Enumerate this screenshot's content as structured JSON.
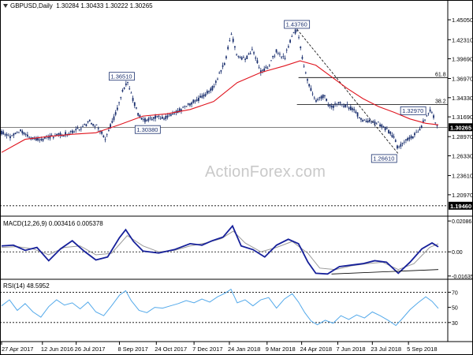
{
  "header": {
    "symbol": "GBPUSD,Daily",
    "ohlc": "1.30284 1.30433 1.30222 1.30265",
    "macd_label": "MACD(12,26,9) 0.003416 0.005378",
    "rsi_label": "RSI(14) 48.5952"
  },
  "watermark": "ActionForex.com",
  "colors": {
    "candles": "#1a2f6e",
    "ma": "#e0141e",
    "macd": "#16209a",
    "signal": "#999999",
    "rsi": "#53a9ea",
    "trend": "#000000"
  },
  "chart_data": [
    {
      "type": "candlestick",
      "title": "GBPUSD,Daily",
      "ylim": [
        1.1846,
        1.4625
      ],
      "y_ticks": [
        1.4505,
        1.4231,
        1.3969,
        1.3697,
        1.3433,
        1.3169,
        1.2897,
        1.2633,
        1.2361,
        1.2097
      ],
      "y_tick_labels": [
        "1.45050",
        "1.42310",
        "1.39690",
        "1.36970",
        "1.34330",
        "1.31690",
        "1.28970",
        "1.26330",
        "1.23610",
        "1.20970"
      ],
      "x_tick_labels": [
        "27 Apr 2017",
        "12 Jun 2016",
        "26 Jul 2017",
        "8 Sep 2017",
        "24 Oct 2017",
        "7 Dec 2017",
        "24 Jan 2018",
        "9 Mar 2018",
        "24 Apr 2018",
        "7 Jun 2018",
        "23 Jul 2018",
        "5 Sep 2018"
      ],
      "close_path": [
        [
          0,
          1.295
        ],
        [
          12,
          1.289
        ],
        [
          25,
          1.298
        ],
        [
          38,
          1.288
        ],
        [
          50,
          1.285
        ],
        [
          62,
          1.29
        ],
        [
          75,
          1.292
        ],
        [
          88,
          1.295
        ],
        [
          100,
          1.301
        ],
        [
          112,
          1.31
        ],
        [
          120,
          1.305
        ],
        [
          132,
          1.288
        ],
        [
          145,
          1.32
        ],
        [
          155,
          1.355
        ],
        [
          160,
          1.364
        ],
        [
          168,
          1.338
        ],
        [
          175,
          1.318
        ],
        [
          185,
          1.311
        ],
        [
          198,
          1.317
        ],
        [
          210,
          1.315
        ],
        [
          225,
          1.325
        ],
        [
          240,
          1.335
        ],
        [
          255,
          1.344
        ],
        [
          270,
          1.358
        ],
        [
          285,
          1.393
        ],
        [
          292,
          1.433
        ],
        [
          300,
          1.402
        ],
        [
          310,
          1.395
        ],
        [
          320,
          1.41
        ],
        [
          330,
          1.378
        ],
        [
          340,
          1.387
        ],
        [
          350,
          1.408
        ],
        [
          360,
          1.396
        ],
        [
          368,
          1.424
        ],
        [
          376,
          1.438
        ],
        [
          382,
          1.402
        ],
        [
          390,
          1.365
        ],
        [
          400,
          1.337
        ],
        [
          410,
          1.346
        ],
        [
          420,
          1.329
        ],
        [
          430,
          1.336
        ],
        [
          440,
          1.332
        ],
        [
          450,
          1.324
        ],
        [
          460,
          1.312
        ],
        [
          470,
          1.31
        ],
        [
          480,
          1.308
        ],
        [
          490,
          1.3
        ],
        [
          500,
          1.287
        ],
        [
          505,
          1.272
        ],
        [
          512,
          1.283
        ],
        [
          520,
          1.288
        ],
        [
          530,
          1.294
        ],
        [
          538,
          1.312
        ],
        [
          545,
          1.326
        ],
        [
          550,
          1.316
        ],
        [
          556,
          1.3026
        ]
      ],
      "ma_path": [
        [
          0,
          1.268
        ],
        [
          30,
          1.286
        ],
        [
          60,
          1.29
        ],
        [
          90,
          1.293
        ],
        [
          120,
          1.295
        ],
        [
          150,
          1.306
        ],
        [
          180,
          1.318
        ],
        [
          210,
          1.321
        ],
        [
          240,
          1.327
        ],
        [
          270,
          1.338
        ],
        [
          300,
          1.364
        ],
        [
          330,
          1.378
        ],
        [
          360,
          1.387
        ],
        [
          380,
          1.394
        ],
        [
          400,
          1.388
        ],
        [
          420,
          1.372
        ],
        [
          440,
          1.356
        ],
        [
          460,
          1.342
        ],
        [
          480,
          1.331
        ],
        [
          500,
          1.323
        ],
        [
          520,
          1.314
        ],
        [
          540,
          1.308
        ],
        [
          556,
          1.306
        ]
      ],
      "price_labels": [
        {
          "text": "1.43760",
          "x": 376,
          "y": 1.4376
        },
        {
          "text": "1.36510",
          "x": 153,
          "y": 1.3651
        },
        {
          "text": "1.30380",
          "x": 186,
          "y": 1.3038
        },
        {
          "text": "1.32970",
          "x": 524,
          "y": 1.3297
        },
        {
          "text": "1.26610",
          "x": 487,
          "y": 1.2661
        }
      ],
      "fib_levels": [
        {
          "label": "61.8",
          "y": 1.371
        },
        {
          "label": "38.2",
          "y": 1.334
        }
      ],
      "horizontal_lines": [
        1.1946,
        1.30265
      ],
      "right_price_boxes": [
        "1.30265",
        "1.19460"
      ]
    },
    {
      "type": "line",
      "title": "MACD(12,26,9) 0.003416 0.005378",
      "ylim": [
        -0.0175,
        0.022
      ],
      "y_ticks": [
        0.020861,
        0.0,
        -0.016357
      ],
      "y_tick_labels": [
        "0.020861",
        "0.00",
        "-0.016357"
      ],
      "series": [
        {
          "name": "MACD",
          "values": [
            [
              0,
              0.004
            ],
            [
              15,
              0.0045
            ],
            [
              30,
              0.001
            ],
            [
              45,
              0.003
            ],
            [
              60,
              -0.006
            ],
            [
              75,
              0.002
            ],
            [
              90,
              0.0075
            ],
            [
              105,
              0.0005
            ],
            [
              120,
              -0.0055
            ],
            [
              135,
              -0.0035
            ],
            [
              150,
              0.0095
            ],
            [
              158,
              0.015
            ],
            [
              168,
              0.007
            ],
            [
              180,
              0.0005
            ],
            [
              200,
              -0.0008
            ],
            [
              220,
              0.0015
            ],
            [
              240,
              0.0055
            ],
            [
              255,
              0.0045
            ],
            [
              268,
              0.0075
            ],
            [
              282,
              0.01
            ],
            [
              294,
              0.0175
            ],
            [
              305,
              0.004
            ],
            [
              320,
              0.0015
            ],
            [
              335,
              -0.0035
            ],
            [
              350,
              0.0045
            ],
            [
              365,
              0.0085
            ],
            [
              378,
              0.0055
            ],
            [
              390,
              -0.007
            ],
            [
              400,
              -0.0145
            ],
            [
              415,
              -0.015
            ],
            [
              430,
              -0.01
            ],
            [
              445,
              -0.009
            ],
            [
              460,
              -0.008
            ],
            [
              475,
              -0.006
            ],
            [
              490,
              -0.007
            ],
            [
              505,
              -0.0145
            ],
            [
              520,
              -0.007
            ],
            [
              535,
              0.002
            ],
            [
              548,
              0.006
            ],
            [
              556,
              0.0034
            ]
          ]
        },
        {
          "name": "Signal",
          "values": [
            [
              0,
              0.003
            ],
            [
              20,
              0.0035
            ],
            [
              40,
              0.002
            ],
            [
              60,
              -0.002
            ],
            [
              80,
              0.003
            ],
            [
              100,
              0.004
            ],
            [
              120,
              -0.002
            ],
            [
              140,
              -0.001
            ],
            [
              160,
              0.011
            ],
            [
              180,
              0.004
            ],
            [
              200,
              0.0
            ],
            [
              220,
              0.001
            ],
            [
              240,
              0.004
            ],
            [
              260,
              0.006
            ],
            [
              280,
              0.009
            ],
            [
              295,
              0.014
            ],
            [
              310,
              0.006
            ],
            [
              330,
              0.0
            ],
            [
              350,
              0.003
            ],
            [
              370,
              0.007
            ],
            [
              390,
              -0.001
            ],
            [
              405,
              -0.011
            ],
            [
              425,
              -0.012
            ],
            [
              445,
              -0.0095
            ],
            [
              465,
              -0.008
            ],
            [
              485,
              -0.007
            ],
            [
              505,
              -0.012
            ],
            [
              525,
              -0.008
            ],
            [
              545,
              0.003
            ],
            [
              556,
              0.0054
            ]
          ]
        }
      ],
      "trendline": [
        [
          420,
          -0.015
        ],
        [
          556,
          -0.012
        ]
      ]
    },
    {
      "type": "line",
      "title": "RSI(14) 48.5952",
      "ylim": [
        10,
        84
      ],
      "y_ticks": [
        70,
        50,
        30
      ],
      "y_tick_labels": [
        "70",
        "50",
        "30"
      ],
      "series": [
        {
          "name": "RSI",
          "values": [
            [
              0,
              52
            ],
            [
              10,
              60
            ],
            [
              20,
              46
            ],
            [
              30,
              55
            ],
            [
              40,
              44
            ],
            [
              50,
              37
            ],
            [
              60,
              51
            ],
            [
              70,
              60
            ],
            [
              80,
              53
            ],
            [
              90,
              56
            ],
            [
              100,
              48
            ],
            [
              110,
              57
            ],
            [
              120,
              44
            ],
            [
              130,
              39
            ],
            [
              140,
              52
            ],
            [
              150,
              66
            ],
            [
              158,
              72
            ],
            [
              165,
              59
            ],
            [
              175,
              46
            ],
            [
              185,
              43
            ],
            [
              195,
              50
            ],
            [
              205,
              49
            ],
            [
              215,
              52
            ],
            [
              225,
              55
            ],
            [
              235,
              59
            ],
            [
              245,
              56
            ],
            [
              255,
              61
            ],
            [
              265,
              57
            ],
            [
              275,
              64
            ],
            [
              285,
              69
            ],
            [
              292,
              74
            ],
            [
              300,
              56
            ],
            [
              310,
              60
            ],
            [
              320,
              52
            ],
            [
              330,
              60
            ],
            [
              340,
              63
            ],
            [
              350,
              49
            ],
            [
              360,
              61
            ],
            [
              370,
              68
            ],
            [
              378,
              57
            ],
            [
              386,
              43
            ],
            [
              394,
              32
            ],
            [
              402,
              27
            ],
            [
              412,
              33
            ],
            [
              422,
              29
            ],
            [
              432,
              39
            ],
            [
              442,
              34
            ],
            [
              452,
              40
            ],
            [
              462,
              36
            ],
            [
              472,
              44
            ],
            [
              482,
              39
            ],
            [
              492,
              33
            ],
            [
              502,
              26
            ],
            [
              510,
              35
            ],
            [
              520,
              47
            ],
            [
              530,
              56
            ],
            [
              540,
              64
            ],
            [
              548,
              58
            ],
            [
              556,
              48.6
            ]
          ]
        }
      ]
    }
  ]
}
